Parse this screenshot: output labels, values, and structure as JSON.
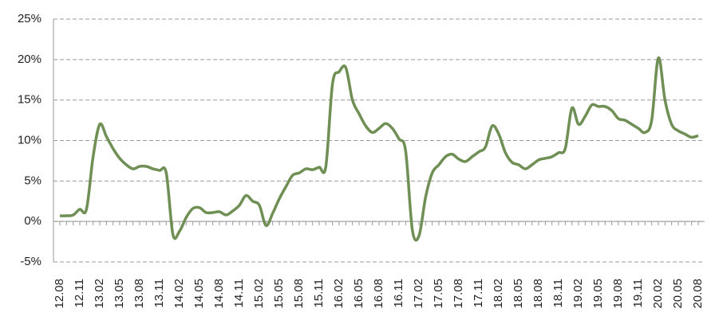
{
  "chart_data": {
    "type": "line",
    "categories": [
      "12.08",
      null,
      null,
      "12.11",
      null,
      null,
      "13.02",
      null,
      null,
      "13.05",
      null,
      null,
      "13.08",
      null,
      null,
      "13.11",
      null,
      null,
      "14.02",
      null,
      null,
      "14.05",
      null,
      null,
      "14.08",
      null,
      null,
      "14.11",
      null,
      null,
      "15.02",
      null,
      null,
      "15.05",
      null,
      null,
      "15.08",
      null,
      null,
      "15.11",
      null,
      null,
      "16.02",
      null,
      null,
      "16.05",
      null,
      null,
      "16.08",
      null,
      null,
      "16.11",
      null,
      null,
      "17.02",
      null,
      null,
      "17.05",
      null,
      null,
      "17.08",
      null,
      null,
      "17.11",
      null,
      null,
      "18.02",
      null,
      null,
      "18.05",
      null,
      null,
      "18.08",
      null,
      null,
      "18.11",
      null,
      null,
      "19.02",
      null,
      null,
      "19.05",
      null,
      null,
      "19.08",
      null,
      null,
      "19.11",
      null,
      null,
      "20.02",
      null,
      null,
      "20.05",
      null,
      null,
      "20.08"
    ],
    "values": [
      0.7,
      0.7,
      0.8,
      1.5,
      1.5,
      8,
      12,
      10.5,
      9,
      7.8,
      7,
      6.5,
      6.8,
      6.8,
      6.5,
      6.3,
      6,
      -1.6,
      -1.2,
      0.5,
      1.6,
      1.7,
      1.1,
      1.1,
      1.2,
      0.8,
      1.3,
      2,
      3.2,
      2.5,
      2,
      -0.5,
      1,
      2.8,
      4.3,
      5.7,
      6,
      6.5,
      6.4,
      6.7,
      6.8,
      17,
      18.5,
      19,
      15,
      13.3,
      11.8,
      11,
      11.5,
      12.1,
      11.5,
      10.2,
      8.7,
      -1,
      -1.8,
      3,
      6,
      7,
      8,
      8.3,
      7.7,
      7.4,
      8,
      8.6,
      9.2,
      11.8,
      10.8,
      8.5,
      7.3,
      7,
      6.5,
      7,
      7.6,
      7.8,
      8,
      8.5,
      9,
      14,
      12,
      13,
      14.4,
      14.2,
      14.2,
      13.7,
      12.7,
      12.5,
      12,
      11.5,
      11,
      12.5,
      20.2,
      15,
      12,
      11.2,
      10.8,
      10.4,
      10.6
    ],
    "color": "#6f8f55",
    "ylim": [
      -5,
      25
    ],
    "yticks": [
      {
        "value": -5,
        "label": "-5%"
      },
      {
        "value": 0,
        "label": "0%"
      },
      {
        "value": 5,
        "label": "5%"
      },
      {
        "value": 10,
        "label": "10%"
      },
      {
        "value": 15,
        "label": "15%"
      },
      {
        "value": 20,
        "label": "20%"
      },
      {
        "value": 25,
        "label": "25%"
      }
    ],
    "grid": true
  }
}
